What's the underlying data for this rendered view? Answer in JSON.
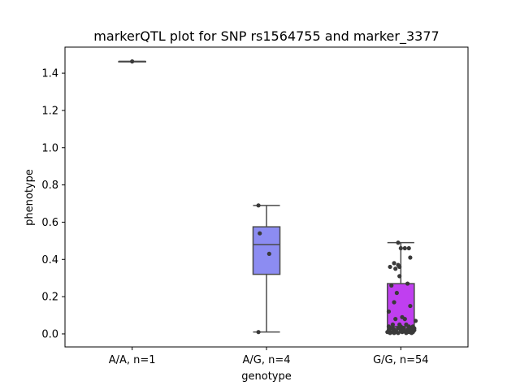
{
  "chart_data": {
    "type": "box",
    "title": "markerQTL plot for SNP rs1564755 and marker_3377",
    "xlabel": "genotype",
    "ylabel": "phenotype",
    "ylim": [
      -0.07,
      1.54
    ],
    "yticks": [
      0.0,
      0.2,
      0.4,
      0.6,
      0.8,
      1.0,
      1.2,
      1.4
    ],
    "ytick_labels": [
      "0.0",
      "0.2",
      "0.4",
      "0.6",
      "0.8",
      "1.0",
      "1.2",
      "1.4"
    ],
    "grid": false,
    "categories": [
      "A/A, n=1",
      "A/G, n=4",
      "G/G, n=54"
    ],
    "boxes": [
      {
        "color": "#f4a27a",
        "q1": 1.463,
        "median": 1.463,
        "q3": 1.463,
        "whisker_low": 1.463,
        "whisker_high": 1.463
      },
      {
        "color": "#8c8cf2",
        "q1": 0.32,
        "median": 0.48,
        "q3": 0.575,
        "whisker_low": 0.01,
        "whisker_high": 0.69
      },
      {
        "color": "#c03ff0",
        "q1": 0.03,
        "median": 0.04,
        "q3": 0.27,
        "whisker_low": 0.005,
        "whisker_high": 0.49
      }
    ],
    "points": [
      [
        [
          0.0,
          1.463
        ]
      ],
      [
        [
          -0.06,
          0.69
        ],
        [
          -0.05,
          0.54
        ],
        [
          0.02,
          0.43
        ],
        [
          -0.06,
          0.01
        ]
      ],
      [
        [
          -0.02,
          0.49
        ],
        [
          0.0,
          0.46
        ],
        [
          0.03,
          0.46
        ],
        [
          0.06,
          0.46
        ],
        [
          0.07,
          0.41
        ],
        [
          -0.05,
          0.38
        ],
        [
          -0.02,
          0.37
        ],
        [
          -0.08,
          0.36
        ],
        [
          -0.04,
          0.35
        ],
        [
          -0.01,
          0.36
        ],
        [
          -0.01,
          0.31
        ],
        [
          0.05,
          0.27
        ],
        [
          -0.07,
          0.26
        ],
        [
          -0.03,
          0.22
        ],
        [
          -0.05,
          0.17
        ],
        [
          0.07,
          0.15
        ],
        [
          -0.09,
          0.12
        ],
        [
          0.01,
          0.09
        ],
        [
          -0.04,
          0.08
        ],
        [
          0.11,
          0.07
        ],
        [
          -0.06,
          0.05
        ],
        [
          0.04,
          0.05
        ],
        [
          -0.08,
          0.03
        ],
        [
          -0.02,
          0.03
        ],
        [
          0.02,
          0.03
        ],
        [
          0.08,
          0.03
        ],
        [
          -0.09,
          0.02
        ],
        [
          -0.05,
          0.02
        ],
        [
          0.0,
          0.02
        ],
        [
          0.05,
          0.02
        ],
        [
          0.1,
          0.02
        ],
        [
          -0.07,
          0.01
        ],
        [
          -0.03,
          0.01
        ],
        [
          0.01,
          0.01
        ],
        [
          0.06,
          0.01
        ],
        [
          0.09,
          0.01
        ],
        [
          -0.1,
          0.01
        ],
        [
          -0.04,
          0.015
        ],
        [
          0.03,
          0.015
        ],
        [
          0.07,
          0.02
        ],
        [
          -0.06,
          0.03
        ],
        [
          0.0,
          0.04
        ],
        [
          0.09,
          0.04
        ],
        [
          -0.01,
          0.05
        ],
        [
          0.03,
          0.08
        ],
        [
          -0.08,
          0.005
        ],
        [
          0.04,
          0.005
        ],
        [
          -0.02,
          0.005
        ],
        [
          0.08,
          0.005
        ],
        [
          0.1,
          0.03
        ],
        [
          -0.05,
          0.005
        ],
        [
          0.02,
          0.02
        ],
        [
          0.06,
          0.04
        ],
        [
          -0.09,
          0.04
        ]
      ]
    ]
  }
}
